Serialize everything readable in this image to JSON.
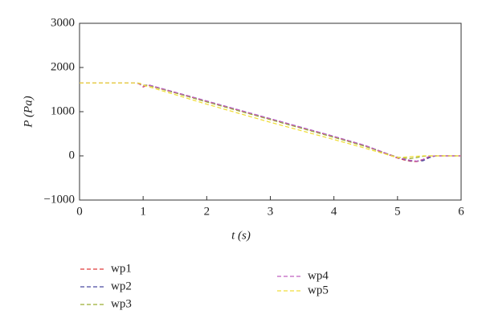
{
  "chart_data": {
    "type": "line",
    "xlabel": "t (s)",
    "ylabel": "P (Pa)",
    "x": [
      0,
      0.9,
      0.95,
      1.0,
      1.05,
      1.1,
      2,
      3,
      4,
      4.5,
      5,
      5.1,
      5.2,
      5.3,
      5.4,
      5.5,
      5.6,
      6
    ],
    "series": [
      {
        "name": "wp1",
        "color": "#e03a3a",
        "values": [
          1650,
          1650,
          1620,
          1560,
          1590,
          1590,
          1230,
          830,
          430,
          220,
          -50,
          -90,
          -120,
          -130,
          -90,
          -20,
          0,
          0
        ]
      },
      {
        "name": "wp2",
        "color": "#4a4aa0",
        "values": [
          1650,
          1650,
          1630,
          1580,
          1600,
          1600,
          1240,
          840,
          440,
          230,
          -40,
          -80,
          -110,
          -120,
          -110,
          -40,
          0,
          0
        ]
      },
      {
        "name": "wp3",
        "color": "#9aae30",
        "values": [
          1650,
          1650,
          1640,
          1600,
          1600,
          1590,
          1220,
          820,
          420,
          210,
          -30,
          -50,
          -60,
          -40,
          -10,
          0,
          0,
          0
        ]
      },
      {
        "name": "wp4",
        "color": "#c060c0",
        "values": [
          1650,
          1650,
          1630,
          1570,
          1600,
          1600,
          1240,
          840,
          440,
          230,
          -40,
          -70,
          -100,
          -120,
          -80,
          -10,
          0,
          0
        ]
      },
      {
        "name": "wp5",
        "color": "#f0de3c",
        "values": [
          1650,
          1650,
          1640,
          1600,
          1580,
          1560,
          1170,
          760,
          370,
          170,
          -40,
          -30,
          -20,
          -10,
          0,
          0,
          0,
          0
        ]
      }
    ],
    "xlim": [
      0,
      6
    ],
    "xticks": [
      0,
      1,
      2,
      3,
      4,
      5,
      6
    ],
    "ylim": [
      -1000,
      3000
    ],
    "yticks": [
      {
        "value": -1000,
        "label": "−1000"
      },
      0,
      1000,
      2000,
      3000
    ]
  }
}
